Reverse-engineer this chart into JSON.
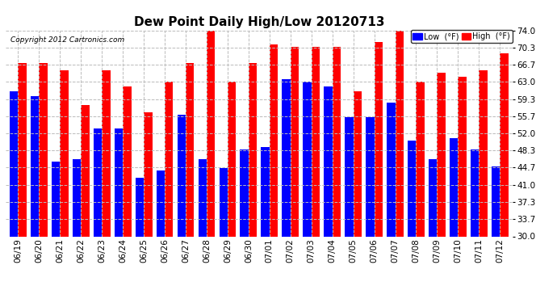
{
  "title": "Dew Point Daily High/Low 20120713",
  "copyright": "Copyright 2012 Cartronics.com",
  "legend_low": "Low  (°F)",
  "legend_high": "High  (°F)",
  "dates": [
    "06/19",
    "06/20",
    "06/21",
    "06/22",
    "06/23",
    "06/24",
    "06/25",
    "06/26",
    "06/27",
    "06/28",
    "06/29",
    "06/30",
    "07/01",
    "07/02",
    "07/03",
    "07/04",
    "07/05",
    "07/06",
    "07/07",
    "07/08",
    "07/09",
    "07/10",
    "07/11",
    "07/12"
  ],
  "high_values": [
    67.0,
    67.0,
    65.5,
    58.0,
    65.5,
    62.0,
    56.5,
    63.0,
    67.0,
    74.0,
    63.0,
    67.0,
    71.0,
    70.5,
    70.5,
    70.5,
    61.0,
    71.5,
    74.5,
    63.0,
    65.0,
    64.0,
    65.5,
    69.0
  ],
  "low_values": [
    61.0,
    60.0,
    46.0,
    46.5,
    53.0,
    53.0,
    42.5,
    44.0,
    56.0,
    46.5,
    44.5,
    48.5,
    49.0,
    63.5,
    63.0,
    62.0,
    55.5,
    55.5,
    58.5,
    50.5,
    46.5,
    51.0,
    48.5,
    45.0
  ],
  "ylim": [
    30.0,
    74.0
  ],
  "yticks": [
    30.0,
    33.7,
    37.3,
    41.0,
    44.7,
    48.3,
    52.0,
    55.7,
    59.3,
    63.0,
    66.7,
    70.3,
    74.0
  ],
  "high_color": "#ff0000",
  "low_color": "#0000ff",
  "bg_color": "#ffffff",
  "grid_color": "#bbbbbb",
  "bar_width": 0.4,
  "title_fontsize": 11,
  "tick_fontsize": 7.5
}
